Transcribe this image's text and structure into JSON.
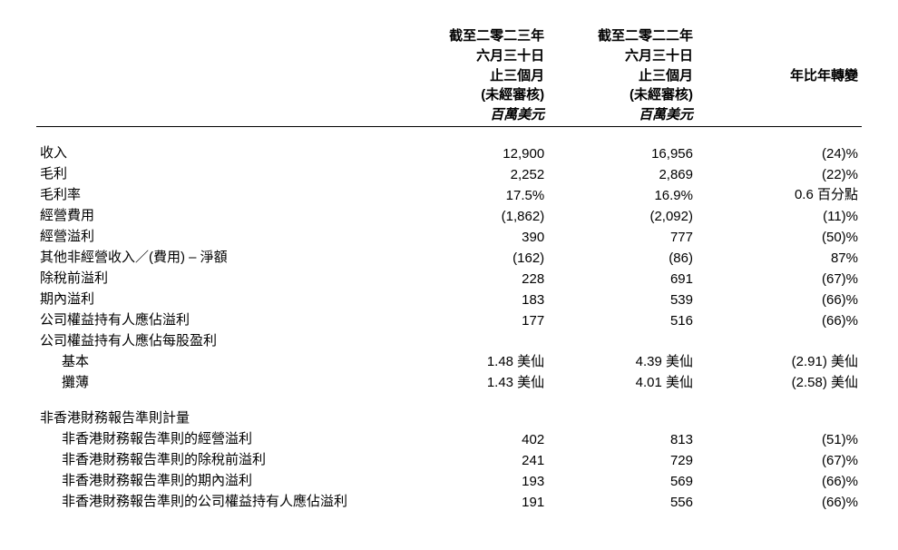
{
  "header": {
    "col1_lines": [
      "截至二零二三年",
      "六月三十日",
      "止三個月",
      "(未經審核)"
    ],
    "col2_lines": [
      "截至二零二二年",
      "六月三十日",
      "止三個月",
      "(未經審核)"
    ],
    "col3_line": "年比年轉變",
    "unit_col1": "百萬美元",
    "unit_col2": "百萬美元"
  },
  "rows": {
    "revenue": {
      "label": "收入",
      "v1": "12,900",
      "v2": "16,956",
      "chg": "(24)%"
    },
    "gross_profit": {
      "label": "毛利",
      "v1": "2,252",
      "v2": "2,869",
      "chg": "(22)%"
    },
    "gross_margin": {
      "label": "毛利率",
      "v1": "17.5%",
      "v2": "16.9%",
      "chg": "0.6 百分點"
    },
    "opex": {
      "label": "經營費用",
      "v1": "(1,862)",
      "v2": "(2,092)",
      "chg": "(11)%"
    },
    "op_profit": {
      "label": "經營溢利",
      "v1": "390",
      "v2": "777",
      "chg": "(50)%"
    },
    "other_nonop": {
      "label": "其他非經營收入／(費用) – 淨額",
      "v1": "(162)",
      "v2": "(86)",
      "chg": "87%"
    },
    "pbt": {
      "label": "除稅前溢利",
      "v1": "228",
      "v2": "691",
      "chg": "(67)%"
    },
    "period_profit": {
      "label": "期內溢利",
      "v1": "183",
      "v2": "539",
      "chg": "(66)%"
    },
    "attrib_profit": {
      "label": "公司權益持有人應佔溢利",
      "v1": "177",
      "v2": "516",
      "chg": "(66)%"
    },
    "eps_head": {
      "label": "公司權益持有人應佔每股盈利"
    },
    "eps_basic": {
      "label": "基本",
      "v1": "1.48 美仙",
      "v2": "4.39 美仙",
      "chg": "(2.91) 美仙"
    },
    "eps_diluted": {
      "label": "攤薄",
      "v1": "1.43 美仙",
      "v2": "4.01 美仙",
      "chg": "(2.58) 美仙"
    },
    "nonhkfrs_head": {
      "label": "非香港財務報告準則計量"
    },
    "nh_op": {
      "label": "非香港財務報告準則的經營溢利",
      "v1": "402",
      "v2": "813",
      "chg": "(51)%"
    },
    "nh_pbt": {
      "label": "非香港財務報告準則的除稅前溢利",
      "v1": "241",
      "v2": "729",
      "chg": "(67)%"
    },
    "nh_period": {
      "label": "非香港財務報告準則的期內溢利",
      "v1": "193",
      "v2": "569",
      "chg": "(66)%"
    },
    "nh_attrib": {
      "label": "非香港財務報告準則的公司權益持有人應佔溢利",
      "v1": "191",
      "v2": "556",
      "chg": "(66)%"
    }
  }
}
